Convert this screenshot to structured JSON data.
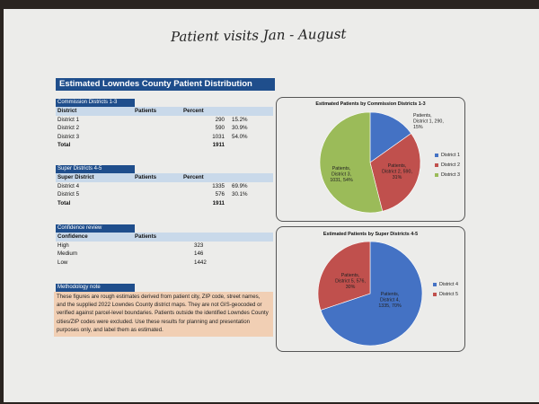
{
  "handwritten_note": "Patient visits Jan - August",
  "title": "Estimated Lowndes County Patient Distribution",
  "commission": {
    "section_title": "Commission Districts 1-3",
    "headers": [
      "District",
      "Patients",
      "Percent"
    ],
    "rows": [
      {
        "name": "District 1",
        "patients": "290",
        "percent": "15.2%"
      },
      {
        "name": "District 2",
        "patients": "590",
        "percent": "30.9%"
      },
      {
        "name": "District 3",
        "patients": "1031",
        "percent": "54.0%"
      }
    ],
    "total_label": "Total",
    "total_value": "1911"
  },
  "super": {
    "section_title": "Super Districts 4-5",
    "headers": [
      "Super District",
      "Patients",
      "Percent"
    ],
    "rows": [
      {
        "name": "District 4",
        "patients": "1335",
        "percent": "69.9%"
      },
      {
        "name": "District 5",
        "patients": "576",
        "percent": "30.1%"
      }
    ],
    "total_label": "Total",
    "total_value": "1911"
  },
  "confidence": {
    "section_title": "Confidence review",
    "headers": [
      "Confidence",
      "Patients"
    ],
    "rows": [
      {
        "name": "High",
        "patients": "323"
      },
      {
        "name": "Medium",
        "patients": "146"
      },
      {
        "name": "Low",
        "patients": "1442"
      }
    ]
  },
  "methodology": {
    "title": "Methodology note",
    "text": "These figures are rough estimates derived from patient city, ZIP code, street names, and the supplied 2022 Lowndes County district maps. They are not GIS-geocoded or verified against parcel-level boundaries. Patients outside the identified Lowndes County cities/ZIP codes were excluded. Use these results for planning and presentation purposes only, and label them as estimated."
  },
  "chart_data": [
    {
      "type": "pie",
      "title": "Estimated Patients by Commission Districts 1-3",
      "categories": [
        "District 1",
        "District 2",
        "District 3"
      ],
      "values": [
        290,
        590,
        1031
      ],
      "labels": [
        [
          "Patients,",
          "District 1, 290,",
          "15%"
        ],
        [
          "Patients,",
          "District 2, 590,",
          "31%"
        ],
        [
          "Patients,",
          "District 3,",
          "1031, 54%"
        ]
      ],
      "colors": [
        "#4472c4",
        "#c0504d",
        "#9bbb59"
      ],
      "legend_position": "right"
    },
    {
      "type": "pie",
      "title": "Estimated Patients by Super Districts 4-5",
      "categories": [
        "District 4",
        "District 5"
      ],
      "values": [
        1335,
        576
      ],
      "labels": [
        [
          "Patients,",
          "District 4,",
          "1335, 70%"
        ],
        [
          "Patients,",
          "District 5, 576,",
          "30%"
        ]
      ],
      "colors": [
        "#4472c4",
        "#c0504d"
      ],
      "legend_position": "right"
    }
  ]
}
